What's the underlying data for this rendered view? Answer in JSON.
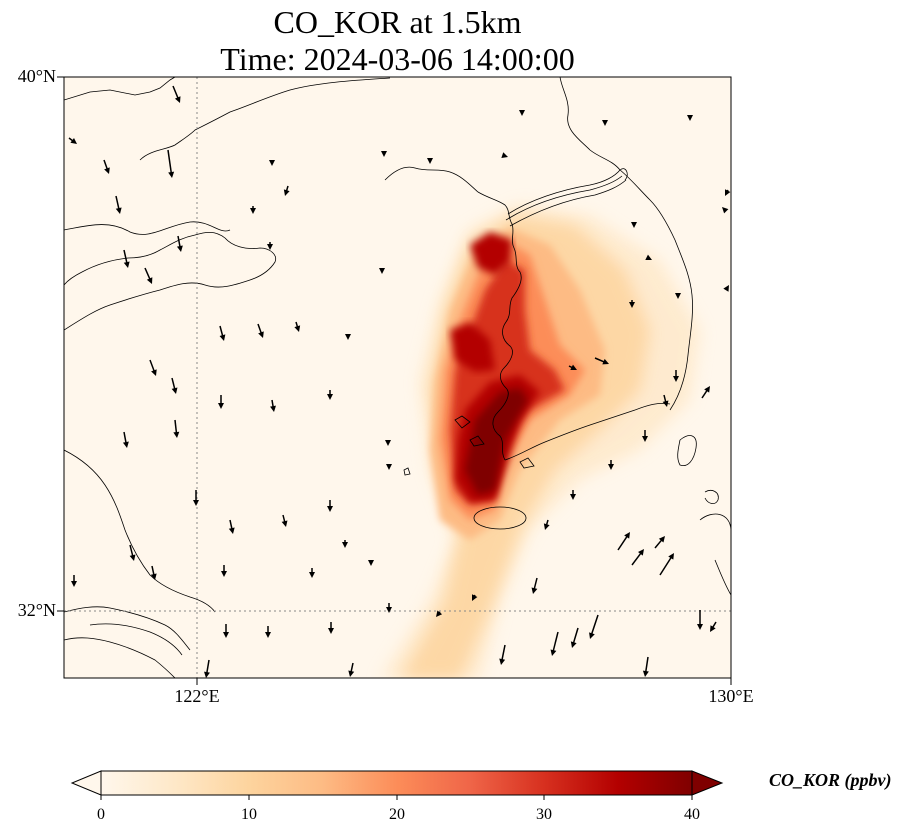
{
  "title_line1": "CO_KOR at 1.5km",
  "title_line2": "Time: 2024-03-06 14:00:00",
  "lat_labels": [
    "40°N",
    "32°N"
  ],
  "lon_labels": [
    "122°E",
    "130°E"
  ],
  "map_extent": {
    "lon_min": 120,
    "lon_max": 130,
    "lat_min": 31,
    "lat_max": 40
  },
  "gridlines": {
    "lon": 122,
    "lat": 32,
    "style": "dotted"
  },
  "colorbar": {
    "label": "CO_KOR (ppbv)",
    "ticks": [
      "0",
      "10",
      "20",
      "30",
      "40"
    ],
    "min": 0,
    "max": 40,
    "extend": "both",
    "colormap": "OrRd",
    "colors": [
      "#fff7ec",
      "#fee8c8",
      "#fdd49e",
      "#fdbb84",
      "#fc8d59",
      "#ef6548",
      "#d7301f",
      "#b30000",
      "#7f0000"
    ]
  },
  "plume": {
    "description_free": true,
    "max_value": 40,
    "core_regions": [
      "west coast Korea",
      "southwest Korea"
    ]
  },
  "wind_vectors": {
    "color": "#000000"
  }
}
